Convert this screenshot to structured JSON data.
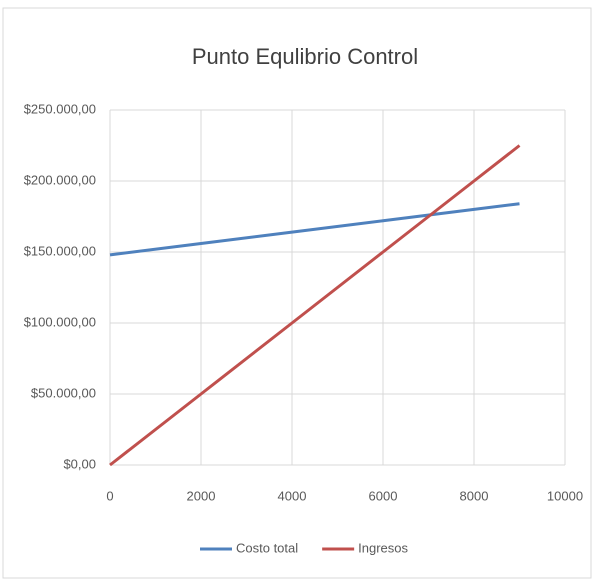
{
  "chart_data": {
    "type": "line",
    "title": "Punto Equlibrio Control",
    "x": [
      0,
      2000,
      4000,
      6000,
      8000,
      9000
    ],
    "series": [
      {
        "name": "Costo total",
        "color": "#4f81bd",
        "values": [
          148000,
          156000,
          164000,
          172000,
          180000,
          184000
        ]
      },
      {
        "name": "Ingresos",
        "color": "#c0504d",
        "values": [
          0,
          50000,
          100000,
          150000,
          200000,
          225000
        ]
      }
    ],
    "xlim": [
      0,
      10000
    ],
    "xticks": [
      0,
      2000,
      4000,
      6000,
      8000,
      10000
    ],
    "ylim": [
      0,
      250000
    ],
    "yticks": [
      {
        "value": 0,
        "label": "$0,00"
      },
      {
        "value": 50000,
        "label": "$50.000,00"
      },
      {
        "value": 100000,
        "label": "$100.000,00"
      },
      {
        "value": 150000,
        "label": "$150.000,00"
      },
      {
        "value": 200000,
        "label": "$200.000,00"
      },
      {
        "value": 250000,
        "label": "$250.000,00"
      }
    ],
    "grid": true,
    "legend": "bottom"
  }
}
